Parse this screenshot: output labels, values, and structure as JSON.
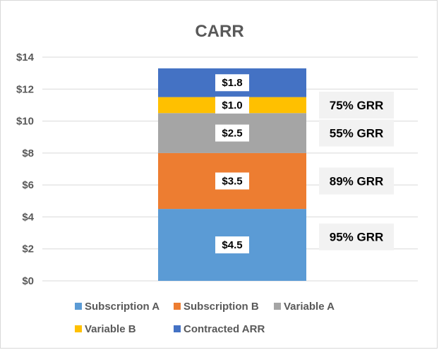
{
  "chart_data": {
    "type": "bar",
    "stacked": true,
    "title": "CARR",
    "xlabel": "",
    "ylabel": "",
    "ylim": [
      0,
      14
    ],
    "y_ticks": [
      0,
      2,
      4,
      6,
      8,
      10,
      12,
      14
    ],
    "y_tick_labels": [
      "$0",
      "$2",
      "$4",
      "$6",
      "$8",
      "$10",
      "$12",
      "$14"
    ],
    "grid": true,
    "legend_position": "bottom",
    "categories": [
      ""
    ],
    "series": [
      {
        "name": "Subscription A",
        "values": [
          4.5
        ],
        "label": "$4.5",
        "color": "#5b9bd5"
      },
      {
        "name": "Subscription B",
        "values": [
          3.5
        ],
        "label": "$3.5",
        "color": "#ed7d31"
      },
      {
        "name": "Variable A",
        "values": [
          2.5
        ],
        "label": "$2.5",
        "color": "#a5a5a5"
      },
      {
        "name": "Variable B",
        "values": [
          1.0
        ],
        "label": "$1.0",
        "color": "#ffc000"
      },
      {
        "name": "Contracted ARR",
        "values": [
          1.8
        ],
        "label": "$1.8",
        "color": "#4472c4"
      }
    ],
    "annotations": [
      {
        "text": "75% GRR",
        "y": 11.0
      },
      {
        "text": "55% GRR",
        "y": 9.25
      },
      {
        "text": "89% GRR",
        "y": 6.25
      },
      {
        "text": "95% GRR",
        "y": 2.75
      }
    ]
  }
}
